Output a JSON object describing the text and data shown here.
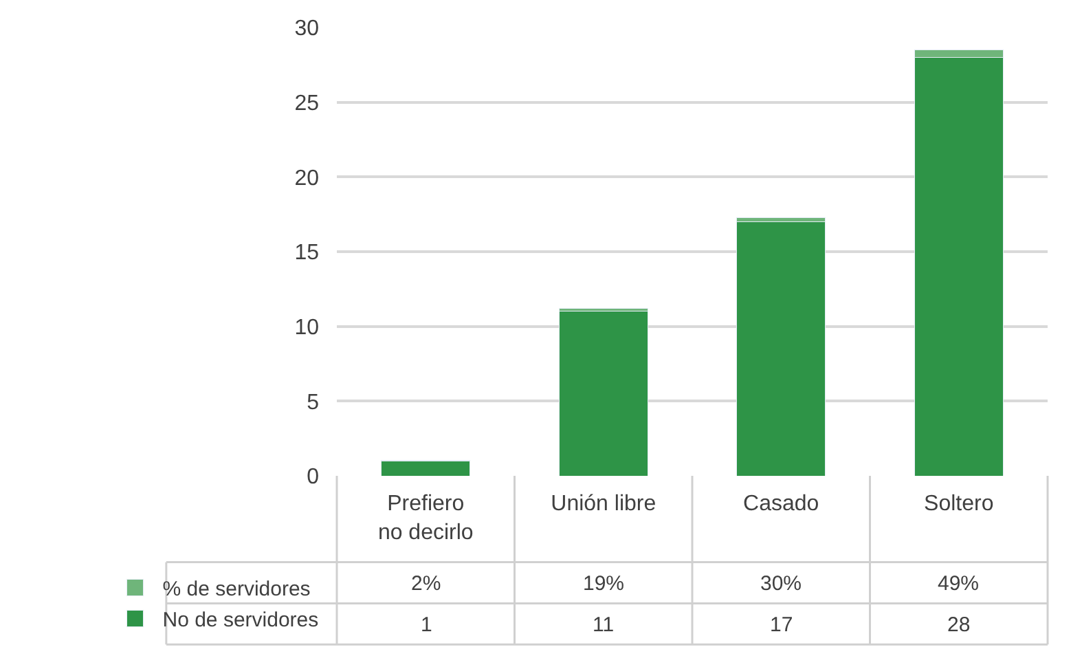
{
  "chart_data": {
    "type": "bar",
    "stacked": true,
    "categories": [
      "Prefiero no decirlo",
      "Unión libre",
      "Casado",
      "Soltero"
    ],
    "series": [
      {
        "name": "No de servidores",
        "color": "#2e9447",
        "values": [
          1,
          11,
          17,
          28
        ]
      },
      {
        "name": "% de servidores",
        "color": "#6fb57a",
        "values": [
          0.02,
          0.19,
          0.3,
          0.49
        ],
        "value_labels": [
          "2%",
          "19%",
          "30%",
          "49%"
        ]
      }
    ],
    "data_labels": true,
    "ylim": [
      0,
      30
    ],
    "yticks": [
      0,
      5,
      10,
      15,
      20,
      25,
      30
    ],
    "grid": "y",
    "legend": "bottom left"
  }
}
